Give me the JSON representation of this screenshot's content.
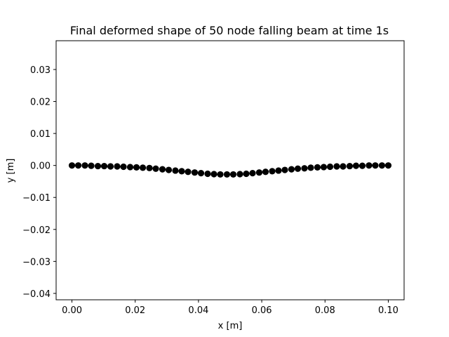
{
  "chart_data": {
    "type": "scatter",
    "title": "Final deformed shape of 50 node falling beam at time 1s",
    "xlabel": "x [m]",
    "ylabel": "y [m]",
    "xlim": [
      -0.005,
      0.105
    ],
    "ylim": [
      -0.042,
      0.039
    ],
    "xticks": [
      0.0,
      0.02,
      0.04,
      0.06,
      0.08,
      0.1
    ],
    "xtick_labels": [
      "0.00",
      "0.02",
      "0.04",
      "0.06",
      "0.08",
      "0.10"
    ],
    "yticks": [
      0.03,
      0.02,
      0.01,
      0.0,
      -0.01,
      -0.02,
      -0.03,
      -0.04
    ],
    "ytick_labels": [
      "0.03",
      "0.02",
      "0.01",
      "0.00",
      "−0.01",
      "−0.02",
      "−0.03",
      "−0.04"
    ],
    "grid": false,
    "marker": "circle",
    "color": "#000000",
    "x": [
      0.0,
      0.002,
      0.0041,
      0.0061,
      0.0082,
      0.0102,
      0.0122,
      0.0143,
      0.0163,
      0.0184,
      0.0204,
      0.0224,
      0.0245,
      0.0265,
      0.0286,
      0.0306,
      0.0327,
      0.0347,
      0.0367,
      0.0388,
      0.0408,
      0.0429,
      0.0449,
      0.0469,
      0.049,
      0.051,
      0.0531,
      0.0551,
      0.0571,
      0.0592,
      0.0612,
      0.0633,
      0.0653,
      0.0673,
      0.0694,
      0.0714,
      0.0735,
      0.0755,
      0.0776,
      0.0796,
      0.0816,
      0.0837,
      0.0857,
      0.0878,
      0.0898,
      0.0918,
      0.0939,
      0.0959,
      0.098,
      0.1
    ],
    "y": [
      0.0,
      -0.0,
      -0.0,
      -0.0001,
      -0.0002,
      -0.0002,
      -0.0003,
      -0.0003,
      -0.0004,
      -0.0005,
      -0.0006,
      -0.0007,
      -0.0008,
      -0.001,
      -0.0012,
      -0.0014,
      -0.0016,
      -0.0018,
      -0.002,
      -0.0022,
      -0.0024,
      -0.0026,
      -0.0027,
      -0.0028,
      -0.0028,
      -0.0028,
      -0.0027,
      -0.0026,
      -0.0024,
      -0.0022,
      -0.002,
      -0.0018,
      -0.0016,
      -0.0014,
      -0.0012,
      -0.001,
      -0.0009,
      -0.0007,
      -0.0006,
      -0.0005,
      -0.0004,
      -0.0003,
      -0.0003,
      -0.0002,
      -0.0001,
      -0.0001,
      -0.0,
      0.0,
      0.0,
      0.0
    ]
  }
}
